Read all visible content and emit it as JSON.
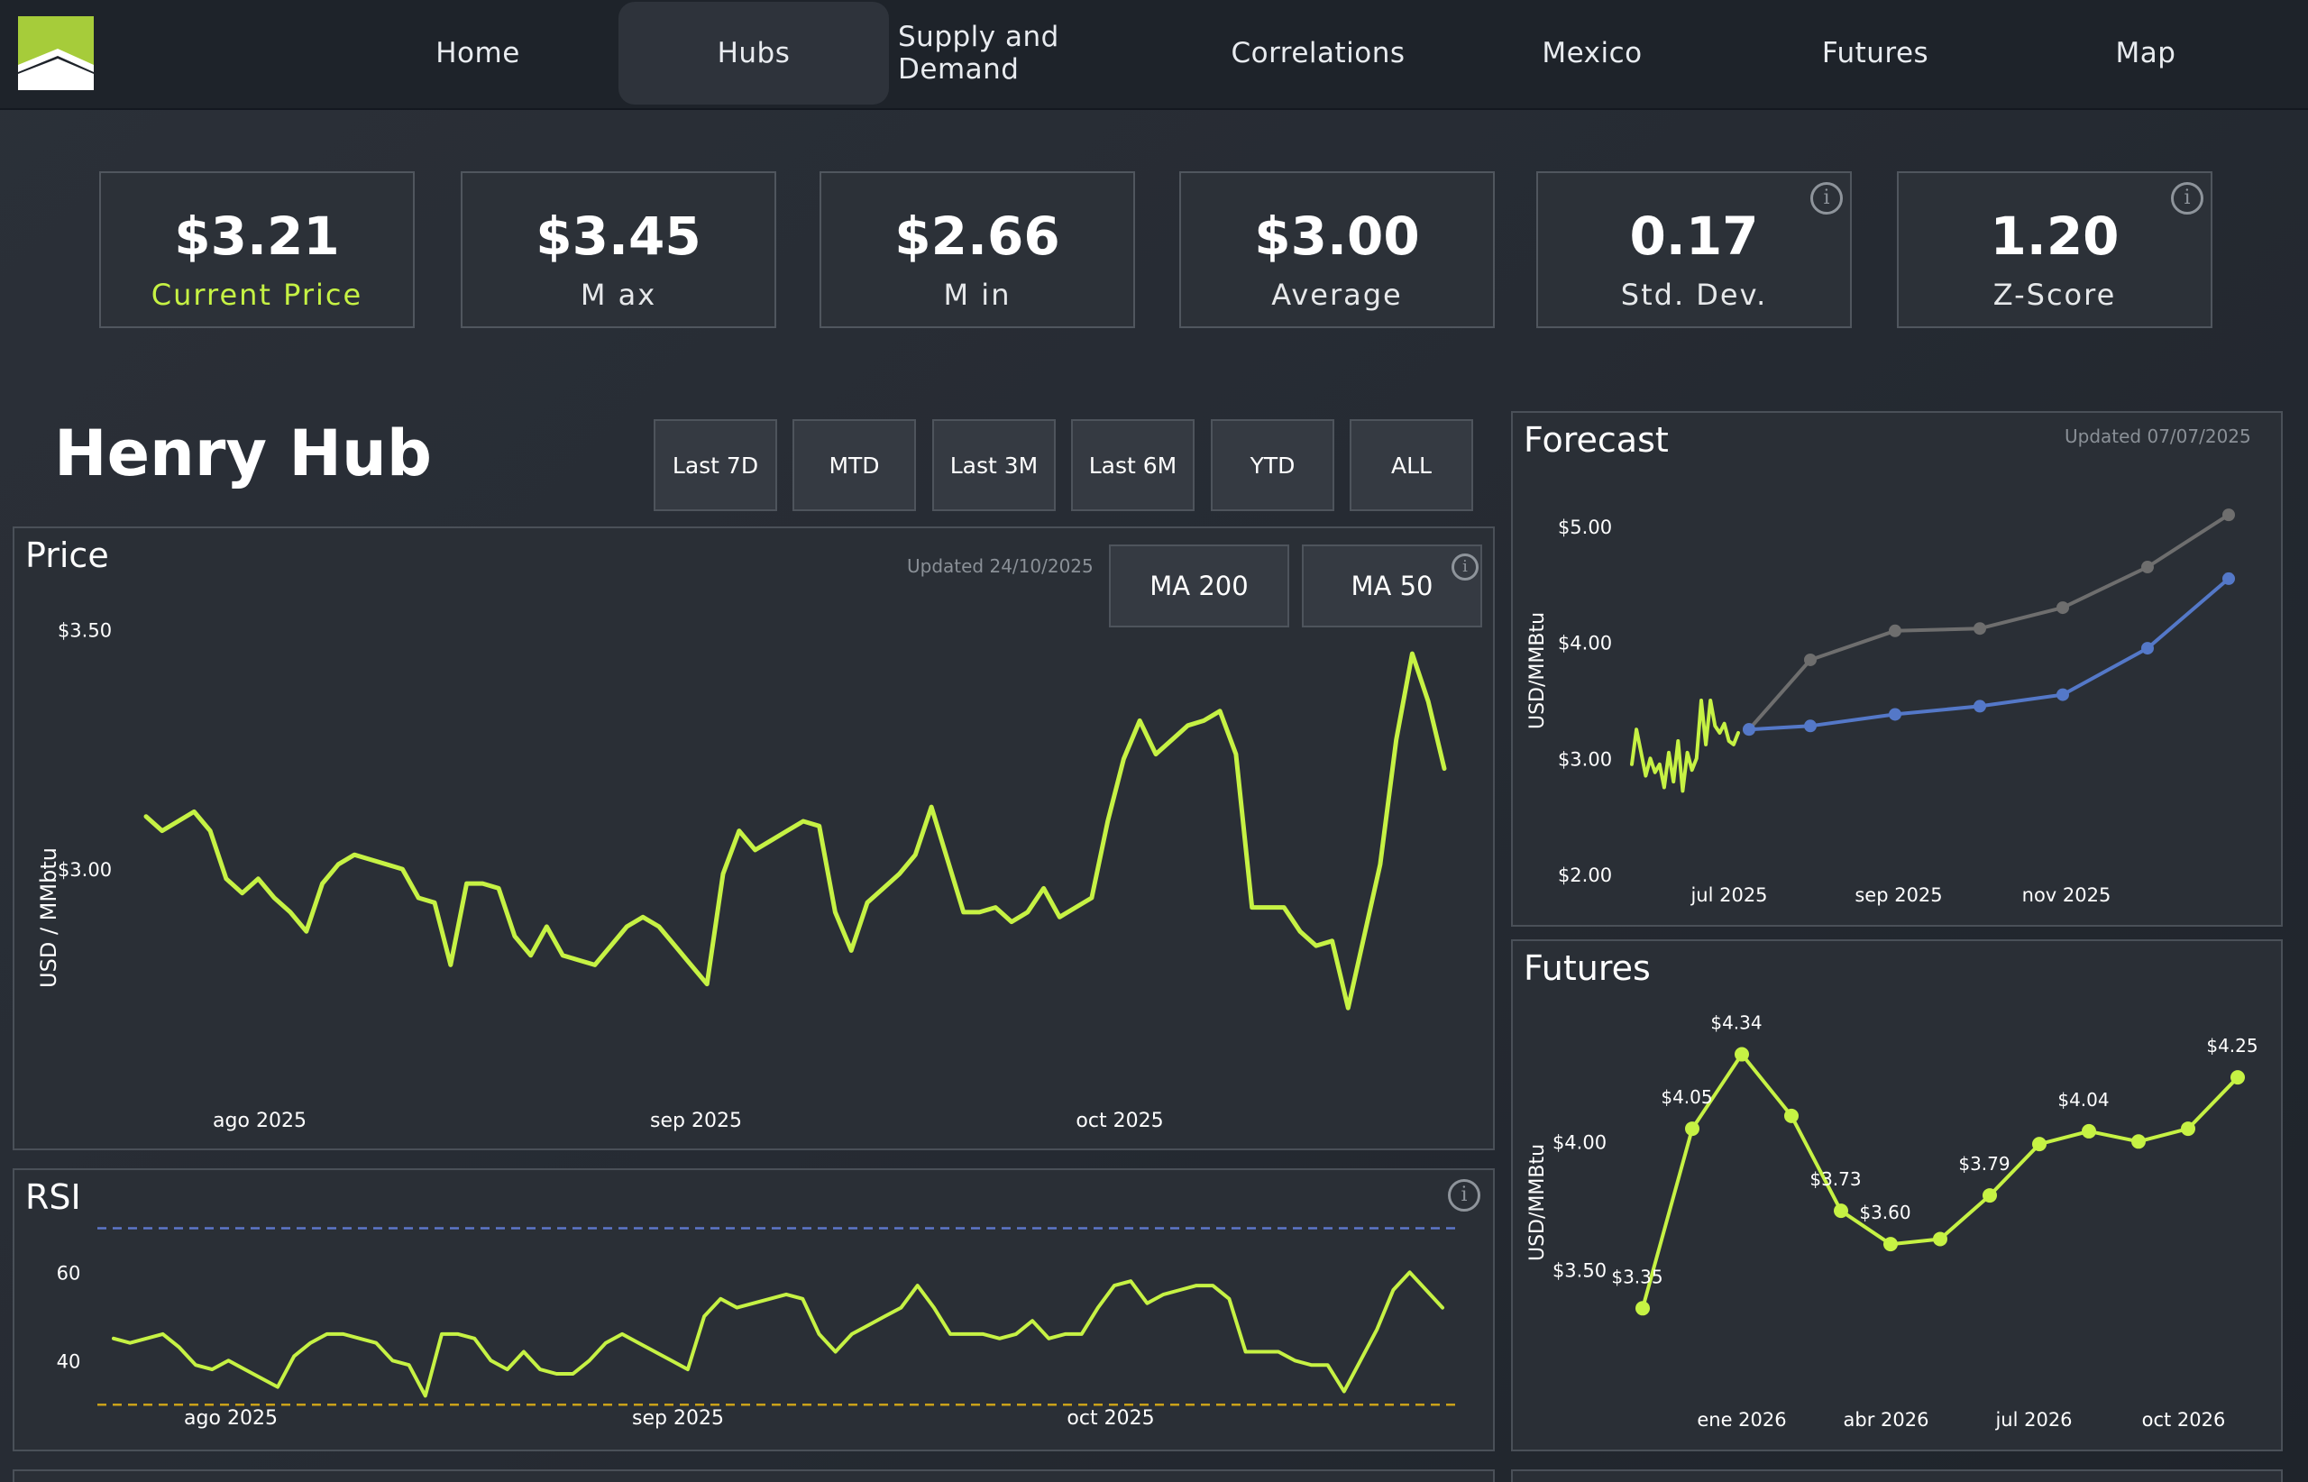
{
  "nav": {
    "items": [
      {
        "label": "Home",
        "active": false
      },
      {
        "label": "Hubs",
        "active": true
      },
      {
        "label": "Supply and Demand",
        "active": false
      },
      {
        "label": "Correlations",
        "active": false
      },
      {
        "label": "Mexico",
        "active": false
      },
      {
        "label": "Futures",
        "active": false
      },
      {
        "label": "Map",
        "active": false
      }
    ]
  },
  "colors": {
    "accent": "#c6f244",
    "forecast_blue": "#5478c8",
    "forecast_gray": "#6e6e6e",
    "ref_blue": "#5d76c9",
    "ref_orange": "#c9a11a"
  },
  "kpis": [
    {
      "value": "$3.21",
      "label": "Current Price",
      "info": false
    },
    {
      "value": "$3.45",
      "label": "M ax",
      "info": false
    },
    {
      "value": "$2.66",
      "label": "M in",
      "info": false
    },
    {
      "value": "$3.00",
      "label": "Average",
      "info": false
    },
    {
      "value": "0.17",
      "label": "Std. Dev.",
      "info": true
    },
    {
      "value": "1.20",
      "label": "Z-Score",
      "info": true
    }
  ],
  "hub_title": "Henry Hub",
  "ranges": [
    "Last 7D",
    "MTD",
    "Last 3M",
    "Last 6M",
    "YTD",
    "ALL"
  ],
  "price_panel": {
    "title": "Price",
    "updated": "Updated 24/10/2025",
    "ma_buttons": [
      "MA 200",
      "MA 50"
    ]
  },
  "rsi_panel": {
    "title": "RSI"
  },
  "forecast_panel": {
    "title": "Forecast",
    "updated": "Updated 07/07/2025"
  },
  "futures_panel": {
    "title": "Futures"
  },
  "chart_data": [
    {
      "id": "price",
      "type": "line",
      "ylabel": "USD / MMbtu",
      "x_ticks": [
        "ago 2025",
        "sep 2025",
        "oct 2025"
      ],
      "y_ticks": [
        "$3.50",
        "$3.00"
      ],
      "ylim": [
        2.62,
        3.58
      ],
      "values": [
        3.11,
        3.08,
        3.1,
        3.12,
        3.08,
        2.98,
        2.95,
        2.98,
        2.94,
        2.91,
        2.87,
        2.97,
        3.01,
        3.03,
        3.02,
        3.01,
        3.0,
        2.94,
        2.93,
        2.8,
        2.97,
        2.97,
        2.96,
        2.86,
        2.82,
        2.88,
        2.82,
        2.81,
        2.8,
        2.84,
        2.88,
        2.9,
        2.88,
        2.84,
        2.8,
        2.76,
        2.99,
        3.08,
        3.04,
        3.06,
        3.08,
        3.1,
        3.09,
        2.91,
        2.83,
        2.93,
        2.96,
        2.99,
        3.03,
        3.13,
        3.02,
        2.91,
        2.91,
        2.92,
        2.89,
        2.91,
        2.96,
        2.9,
        2.92,
        2.94,
        3.1,
        3.23,
        3.31,
        3.24,
        3.27,
        3.3,
        3.31,
        3.33,
        3.24,
        2.92,
        2.92,
        2.92,
        2.87,
        2.84,
        2.85,
        2.71,
        2.86,
        3.01,
        3.27,
        3.45,
        3.35,
        3.21
      ]
    },
    {
      "id": "rsi",
      "type": "line",
      "x_ticks": [
        "ago 2025",
        "sep 2025",
        "oct 2025"
      ],
      "y_ticks": [
        "60",
        "40"
      ],
      "ylim": [
        28,
        75
      ],
      "reference_lines": [
        70,
        30
      ],
      "values": [
        45,
        44,
        45,
        46,
        43,
        39,
        38,
        40,
        38,
        36,
        34,
        41,
        44,
        46,
        46,
        45,
        44,
        40,
        39,
        32,
        46,
        46,
        45,
        40,
        38,
        42,
        38,
        37,
        37,
        40,
        44,
        46,
        44,
        42,
        40,
        38,
        50,
        54,
        52,
        53,
        54,
        55,
        54,
        46,
        42,
        46,
        48,
        50,
        52,
        57,
        52,
        46,
        46,
        46,
        45,
        46,
        49,
        45,
        46,
        46,
        52,
        57,
        58,
        53,
        55,
        56,
        57,
        57,
        54,
        42,
        42,
        42,
        40,
        39,
        39,
        33,
        40,
        47,
        56,
        60,
        56,
        52
      ]
    },
    {
      "id": "forecast",
      "type": "line",
      "ylabel": "USD/MMBtu",
      "x_ticks": [
        "jul 2025",
        "sep 2025",
        "nov 2025"
      ],
      "y_ticks": [
        "$5.00",
        "$4.00",
        "$3.00",
        "$2.00"
      ],
      "ylim": [
        2.0,
        5.0
      ],
      "history": [
        2.95,
        3.25,
        3.05,
        2.85,
        3.0,
        2.88,
        2.95,
        2.75,
        3.05,
        2.8,
        3.15,
        2.72,
        3.05,
        2.9,
        3.0,
        3.5,
        3.12,
        3.5,
        3.28,
        3.22,
        3.3,
        3.15,
        3.12,
        3.22
      ],
      "series": [
        {
          "values": [
            3.25,
            3.85,
            4.1,
            4.12,
            4.3,
            4.65,
            5.1
          ]
        },
        {
          "values": [
            3.25,
            3.28,
            3.38,
            3.45,
            3.55,
            3.95,
            4.55
          ]
        }
      ]
    },
    {
      "id": "futures",
      "type": "line",
      "ylabel": "USD/MMBtu",
      "x_ticks": [
        "ene 2026",
        "abr 2026",
        "jul 2026",
        "oct 2026"
      ],
      "y_ticks": [
        "$4.00",
        "$3.50"
      ],
      "ylim": [
        3.2,
        4.5
      ],
      "values": [
        3.35,
        4.05,
        4.34,
        4.1,
        3.73,
        3.6,
        3.62,
        3.79,
        3.99,
        4.04,
        4.0,
        4.05,
        4.25
      ],
      "data_labels": {
        "0": "$3.35",
        "1": "$4.05",
        "2": "$4.34",
        "4": "$3.73",
        "5": "$3.60",
        "7": "$3.79",
        "9": "$4.04",
        "12": "$4.25"
      }
    }
  ]
}
